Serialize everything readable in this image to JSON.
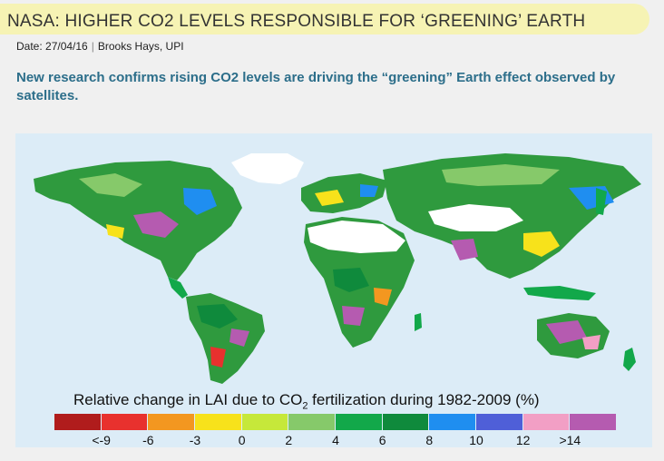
{
  "article": {
    "headline": "NASA: HIGHER CO2 LEVELS RESPONSIBLE FOR ‘GREENING’ EARTH",
    "date": "Date: 27/04/16",
    "separator": "|",
    "author": "Brooks Hays, UPI",
    "lede": "New research confirms rising CO2 levels are driving the “greening” Earth effect observed by satellites."
  },
  "figure": {
    "legend_title_prefix": "Relative change in LAI due to CO",
    "legend_title_sub": "2",
    "legend_title_suffix": " fertilization during 1982-2009 (%)",
    "colors": [
      "#b01c1c",
      "#e8312e",
      "#f39720",
      "#f7e21b",
      "#c6e83a",
      "#86c96a",
      "#12a84a",
      "#0f8a3c",
      "#1f8ef0",
      "#4f5fd8",
      "#f29fc5",
      "#b55bb0"
    ],
    "tick_labels": [
      "<-9",
      "-6",
      "-3",
      "0",
      "2",
      "4",
      "6",
      "8",
      "10",
      "12",
      ">14"
    ],
    "colors_note": {
      "ocean": "#dcecf7",
      "land_base": "#2f9a3e",
      "ice": "#ffffff"
    }
  }
}
